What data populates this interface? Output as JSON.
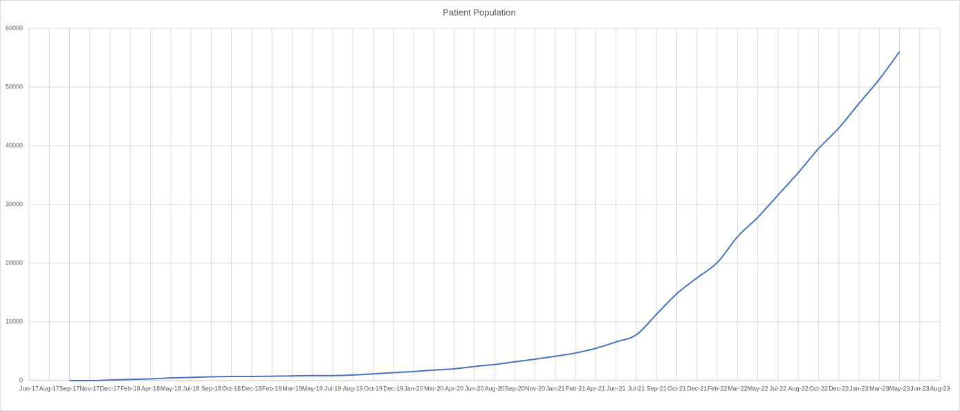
{
  "chart_data": {
    "type": "line",
    "title": "Patient Population",
    "categories": [
      "Jun-17",
      "Aug-17",
      "Sep-17",
      "Nov-17",
      "Dec-17",
      "Feb-18",
      "Apr-18",
      "May-18",
      "Jul-18",
      "Sep-18",
      "Oct-18",
      "Dec-18",
      "Feb-19",
      "Mar-19",
      "May-19",
      "Jul-19",
      "Aug-19",
      "Oct-19",
      "Dec-19",
      "Jan-20",
      "Mar-20",
      "Apr-20",
      "Jun-20",
      "Aug-20",
      "Sep-20",
      "Nov-20",
      "Jan-21",
      "Feb-21",
      "Apr-21",
      "Jun-21",
      "Jul-21",
      "Sep-21",
      "Oct-21",
      "Dec-21",
      "Feb-22",
      "Mar-22",
      "May-22",
      "Jul-22",
      "Aug-22",
      "Oct-22",
      "Dec-22",
      "Jan-23",
      "Mar-23",
      "May-23",
      "Jun-23",
      "Aug-23"
    ],
    "values": [
      null,
      null,
      0,
      0,
      100,
      200,
      300,
      450,
      550,
      650,
      700,
      700,
      750,
      800,
      850,
      850,
      950,
      1150,
      1350,
      1550,
      1800,
      2000,
      2400,
      2750,
      3200,
      3650,
      4150,
      4700,
      5500,
      6600,
      7800,
      11300,
      14800,
      17500,
      20100,
      24500,
      27800,
      31600,
      35400,
      39500,
      43000,
      47200,
      51300,
      56000,
      null,
      null
    ],
    "color": "#4472c4",
    "ylim": [
      0,
      60000
    ],
    "yticks": [
      0,
      10000,
      20000,
      30000,
      40000,
      50000,
      60000
    ],
    "grid": true
  }
}
